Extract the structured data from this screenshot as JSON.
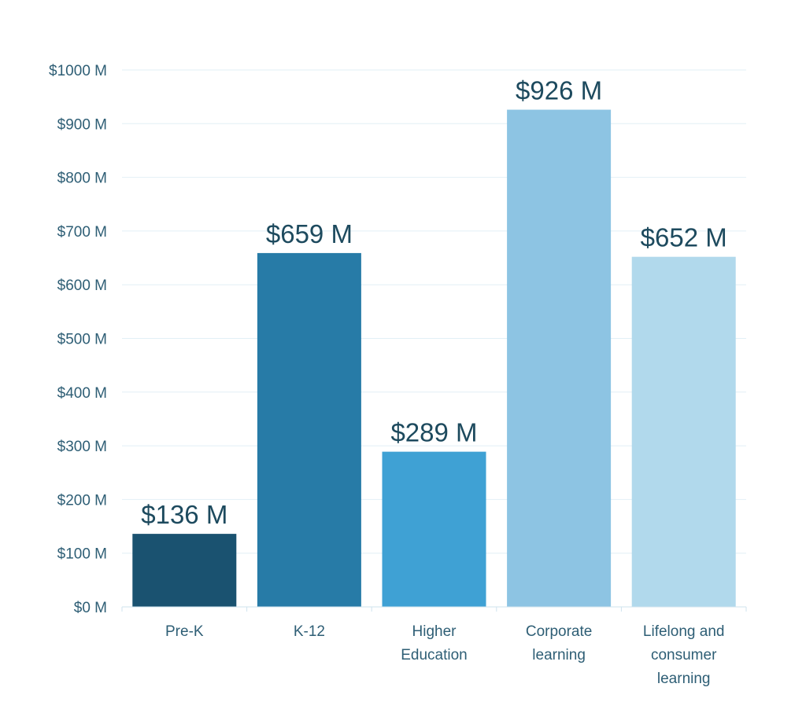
{
  "chart_data": {
    "type": "bar",
    "title": "",
    "xlabel": "",
    "ylabel": "",
    "ylim": [
      0,
      1000
    ],
    "yticks": [
      0,
      100,
      200,
      300,
      400,
      500,
      600,
      700,
      800,
      900,
      1000
    ],
    "ytick_labels": [
      "$0 M",
      "$100 M",
      "$200 M",
      "$300 M",
      "$400 M",
      "$500 M",
      "$600 M",
      "$700 M",
      "$800 M",
      "$900 M",
      "$1000 M"
    ],
    "categories": [
      [
        "Pre-K"
      ],
      [
        "K-12"
      ],
      [
        "Higher",
        "Education"
      ],
      [
        "Corporate",
        "learning"
      ],
      [
        "Lifelong and",
        "consumer",
        "learning"
      ]
    ],
    "values": [
      136,
      659,
      289,
      926,
      652
    ],
    "data_labels": [
      "$136 M",
      "$659 M",
      "$289 M",
      "$926 M",
      "$652 M"
    ],
    "grid": true,
    "colors": {
      "bars": [
        "#1a5270",
        "#277ba7",
        "#3fa1d4",
        "#8dc4e3",
        "#b1d9ec"
      ],
      "grid": "#e2eff6",
      "axis": "#cfe3ee",
      "tick_text": "#2e5e75",
      "label_text": "#1d4a5e"
    }
  }
}
